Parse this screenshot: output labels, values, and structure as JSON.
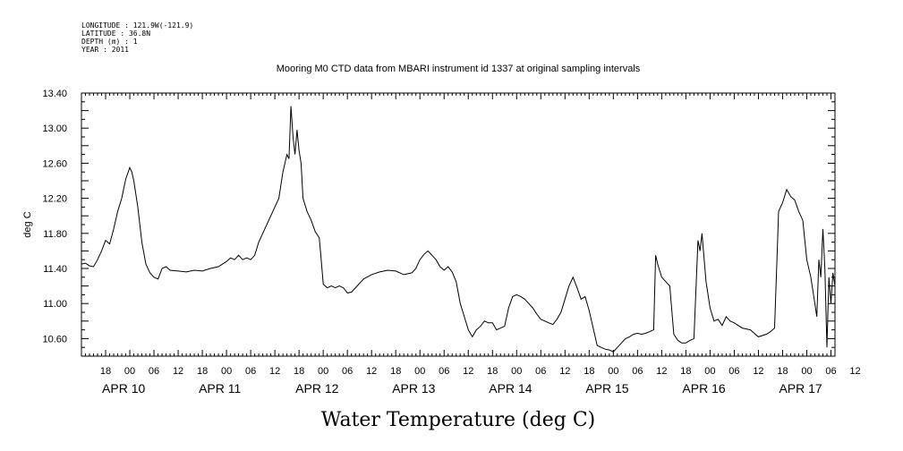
{
  "header": {
    "lines": [
      "LONGITUDE : 121.9W(-121.9)",
      "LATITUDE : 36.8N",
      "DEPTH (m) : 1",
      "YEAR : 2011"
    ]
  },
  "chart_data": {
    "type": "line",
    "title": "Mooring M0 CTD data from MBARI instrument id 1337 at original sampling intervals",
    "xlabel": "Water Temperature (deg C)",
    "ylabel": "deg C",
    "ylim": [
      10.4,
      13.4
    ],
    "yticks": [
      "10.60",
      "11.00",
      "11.40",
      "11.80",
      "12.20",
      "12.60",
      "13.00",
      "13.40"
    ],
    "xlim": [
      "2011-04-09T12:00",
      "2011-04-17T07:00"
    ],
    "x_hour_labels": [
      "18",
      "00",
      "06",
      "12",
      "18",
      "00",
      "06",
      "12",
      "18",
      "00",
      "06",
      "12",
      "18",
      "00",
      "06",
      "12",
      "18",
      "00",
      "06",
      "12",
      "18",
      "00",
      "06",
      "12",
      "18",
      "00",
      "06",
      "12",
      "18",
      "00",
      "06",
      "12"
    ],
    "x_day_labels": [
      "APR 10",
      "APR 11",
      "APR 12",
      "APR 13",
      "APR 14",
      "APR 15",
      "APR 16",
      "APR 17"
    ],
    "grid": false,
    "series": [
      {
        "color": "#000000",
        "points": [
          [
            "2011-04-09T12:00",
            11.45
          ],
          [
            "2011-04-09T13:00",
            11.46
          ],
          [
            "2011-04-09T14:00",
            11.43
          ],
          [
            "2011-04-09T15:00",
            11.42
          ],
          [
            "2011-04-09T16:00",
            11.5
          ],
          [
            "2011-04-09T17:00",
            11.6
          ],
          [
            "2011-04-09T18:00",
            11.72
          ],
          [
            "2011-04-09T19:00",
            11.68
          ],
          [
            "2011-04-09T20:00",
            11.85
          ],
          [
            "2011-04-09T21:00",
            12.05
          ],
          [
            "2011-04-09T22:00",
            12.2
          ],
          [
            "2011-04-09T23:00",
            12.42
          ],
          [
            "2011-04-10T00:00",
            12.55
          ],
          [
            "2011-04-10T00:30",
            12.5
          ],
          [
            "2011-04-10T01:00",
            12.4
          ],
          [
            "2011-04-10T02:00",
            12.1
          ],
          [
            "2011-04-10T03:00",
            11.7
          ],
          [
            "2011-04-10T04:00",
            11.45
          ],
          [
            "2011-04-10T05:00",
            11.35
          ],
          [
            "2011-04-10T06:00",
            11.3
          ],
          [
            "2011-04-10T07:00",
            11.28
          ],
          [
            "2011-04-10T08:00",
            11.4
          ],
          [
            "2011-04-10T09:00",
            11.42
          ],
          [
            "2011-04-10T10:00",
            11.38
          ],
          [
            "2011-04-10T12:00",
            11.37
          ],
          [
            "2011-04-10T14:00",
            11.36
          ],
          [
            "2011-04-10T16:00",
            11.38
          ],
          [
            "2011-04-10T18:00",
            11.37
          ],
          [
            "2011-04-10T20:00",
            11.4
          ],
          [
            "2011-04-10T22:00",
            11.42
          ],
          [
            "2011-04-11T00:00",
            11.48
          ],
          [
            "2011-04-11T01:00",
            11.52
          ],
          [
            "2011-04-11T02:00",
            11.5
          ],
          [
            "2011-04-11T03:00",
            11.55
          ],
          [
            "2011-04-11T04:00",
            11.5
          ],
          [
            "2011-04-11T05:00",
            11.52
          ],
          [
            "2011-04-11T06:00",
            11.5
          ],
          [
            "2011-04-11T07:00",
            11.55
          ],
          [
            "2011-04-11T08:00",
            11.7
          ],
          [
            "2011-04-11T09:00",
            11.8
          ],
          [
            "2011-04-11T10:00",
            11.9
          ],
          [
            "2011-04-11T11:00",
            12.0
          ],
          [
            "2011-04-11T12:00",
            12.1
          ],
          [
            "2011-04-11T13:00",
            12.2
          ],
          [
            "2011-04-11T14:00",
            12.5
          ],
          [
            "2011-04-11T15:00",
            12.7
          ],
          [
            "2011-04-11T15:30",
            12.65
          ],
          [
            "2011-04-11T16:00",
            13.25
          ],
          [
            "2011-04-11T16:30",
            12.9
          ],
          [
            "2011-04-11T17:00",
            12.7
          ],
          [
            "2011-04-11T17:30",
            12.98
          ],
          [
            "2011-04-11T18:00",
            12.75
          ],
          [
            "2011-04-11T18:30",
            12.6
          ],
          [
            "2011-04-11T19:00",
            12.2
          ],
          [
            "2011-04-11T20:00",
            12.05
          ],
          [
            "2011-04-11T21:00",
            11.95
          ],
          [
            "2011-04-11T22:00",
            11.82
          ],
          [
            "2011-04-11T23:00",
            11.75
          ],
          [
            "2011-04-11T23:30",
            11.5
          ],
          [
            "2011-04-12T00:00",
            11.22
          ],
          [
            "2011-04-12T01:00",
            11.18
          ],
          [
            "2011-04-12T02:00",
            11.2
          ],
          [
            "2011-04-12T03:00",
            11.18
          ],
          [
            "2011-04-12T04:00",
            11.2
          ],
          [
            "2011-04-12T05:00",
            11.18
          ],
          [
            "2011-04-12T06:00",
            11.12
          ],
          [
            "2011-04-12T07:00",
            11.13
          ],
          [
            "2011-04-12T08:00",
            11.18
          ],
          [
            "2011-04-12T10:00",
            11.28
          ],
          [
            "2011-04-12T12:00",
            11.33
          ],
          [
            "2011-04-12T14:00",
            11.36
          ],
          [
            "2011-04-12T16:00",
            11.38
          ],
          [
            "2011-04-12T18:00",
            11.37
          ],
          [
            "2011-04-12T20:00",
            11.33
          ],
          [
            "2011-04-12T22:00",
            11.35
          ],
          [
            "2011-04-12T23:00",
            11.4
          ],
          [
            "2011-04-13T00:00",
            11.5
          ],
          [
            "2011-04-13T01:00",
            11.56
          ],
          [
            "2011-04-13T02:00",
            11.6
          ],
          [
            "2011-04-13T03:00",
            11.55
          ],
          [
            "2011-04-13T04:00",
            11.5
          ],
          [
            "2011-04-13T05:00",
            11.42
          ],
          [
            "2011-04-13T06:00",
            11.38
          ],
          [
            "2011-04-13T07:00",
            11.42
          ],
          [
            "2011-04-13T08:00",
            11.36
          ],
          [
            "2011-04-13T09:00",
            11.25
          ],
          [
            "2011-04-13T10:00",
            11.0
          ],
          [
            "2011-04-13T11:00",
            10.85
          ],
          [
            "2011-04-13T12:00",
            10.7
          ],
          [
            "2011-04-13T13:00",
            10.62
          ],
          [
            "2011-04-13T14:00",
            10.7
          ],
          [
            "2011-04-13T15:00",
            10.74
          ],
          [
            "2011-04-13T16:00",
            10.8
          ],
          [
            "2011-04-13T17:00",
            10.78
          ],
          [
            "2011-04-13T18:00",
            10.78
          ],
          [
            "2011-04-13T19:00",
            10.7
          ],
          [
            "2011-04-13T20:00",
            10.72
          ],
          [
            "2011-04-13T21:00",
            10.74
          ],
          [
            "2011-04-13T22:00",
            10.95
          ],
          [
            "2011-04-13T23:00",
            11.08
          ],
          [
            "2011-04-14T00:00",
            11.1
          ],
          [
            "2011-04-14T01:00",
            11.08
          ],
          [
            "2011-04-14T02:00",
            11.05
          ],
          [
            "2011-04-14T03:00",
            11.0
          ],
          [
            "2011-04-14T04:00",
            10.95
          ],
          [
            "2011-04-14T05:00",
            10.88
          ],
          [
            "2011-04-14T06:00",
            10.82
          ],
          [
            "2011-04-14T07:00",
            10.8
          ],
          [
            "2011-04-14T08:00",
            10.78
          ],
          [
            "2011-04-14T09:00",
            10.76
          ],
          [
            "2011-04-14T10:00",
            10.82
          ],
          [
            "2011-04-14T11:00",
            10.9
          ],
          [
            "2011-04-14T12:00",
            11.05
          ],
          [
            "2011-04-14T13:00",
            11.2
          ],
          [
            "2011-04-14T14:00",
            11.3
          ],
          [
            "2011-04-14T15:00",
            11.18
          ],
          [
            "2011-04-14T16:00",
            11.05
          ],
          [
            "2011-04-14T17:00",
            11.08
          ],
          [
            "2011-04-14T18:00",
            10.92
          ],
          [
            "2011-04-14T19:00",
            10.72
          ],
          [
            "2011-04-14T20:00",
            10.52
          ],
          [
            "2011-04-14T21:00",
            10.5
          ],
          [
            "2011-04-14T22:00",
            10.48
          ],
          [
            "2011-04-14T23:00",
            10.47
          ],
          [
            "2011-04-15T00:00",
            10.45
          ],
          [
            "2011-04-15T01:00",
            10.5
          ],
          [
            "2011-04-15T02:00",
            10.55
          ],
          [
            "2011-04-15T03:00",
            10.6
          ],
          [
            "2011-04-15T04:00",
            10.62
          ],
          [
            "2011-04-15T05:00",
            10.65
          ],
          [
            "2011-04-15T06:00",
            10.66
          ],
          [
            "2011-04-15T07:00",
            10.65
          ],
          [
            "2011-04-15T08:00",
            10.66
          ],
          [
            "2011-04-15T09:00",
            10.68
          ],
          [
            "2011-04-15T10:00",
            10.7
          ],
          [
            "2011-04-15T10:30",
            11.55
          ],
          [
            "2011-04-15T11:00",
            11.45
          ],
          [
            "2011-04-15T12:00",
            11.3
          ],
          [
            "2011-04-15T13:00",
            11.25
          ],
          [
            "2011-04-15T14:00",
            11.2
          ],
          [
            "2011-04-15T15:00",
            10.65
          ],
          [
            "2011-04-15T16:00",
            10.58
          ],
          [
            "2011-04-15T17:00",
            10.55
          ],
          [
            "2011-04-15T18:00",
            10.55
          ],
          [
            "2011-04-15T19:00",
            10.58
          ],
          [
            "2011-04-15T20:00",
            10.6
          ],
          [
            "2011-04-15T21:00",
            11.72
          ],
          [
            "2011-04-15T21:30",
            11.6
          ],
          [
            "2011-04-15T22:00",
            11.8
          ],
          [
            "2011-04-15T23:00",
            11.25
          ],
          [
            "2011-04-16T00:00",
            10.95
          ],
          [
            "2011-04-16T01:00",
            10.8
          ],
          [
            "2011-04-16T02:00",
            10.82
          ],
          [
            "2011-04-16T03:00",
            10.75
          ],
          [
            "2011-04-16T04:00",
            10.85
          ],
          [
            "2011-04-16T05:00",
            10.8
          ],
          [
            "2011-04-16T06:00",
            10.78
          ],
          [
            "2011-04-16T08:00",
            10.72
          ],
          [
            "2011-04-16T10:00",
            10.7
          ],
          [
            "2011-04-16T12:00",
            10.62
          ],
          [
            "2011-04-16T14:00",
            10.65
          ],
          [
            "2011-04-16T15:00",
            10.68
          ],
          [
            "2011-04-16T16:00",
            10.72
          ],
          [
            "2011-04-16T17:00",
            12.05
          ],
          [
            "2011-04-16T18:00",
            12.15
          ],
          [
            "2011-04-16T19:00",
            12.3
          ],
          [
            "2011-04-16T20:00",
            12.22
          ],
          [
            "2011-04-16T21:00",
            12.18
          ],
          [
            "2011-04-16T22:00",
            12.05
          ],
          [
            "2011-04-16T23:00",
            11.95
          ],
          [
            "2011-04-17T00:00",
            11.5
          ],
          [
            "2011-04-17T01:00",
            11.3
          ],
          [
            "2011-04-17T02:00",
            11.0
          ],
          [
            "2011-04-17T02:30",
            10.85
          ],
          [
            "2011-04-17T03:00",
            11.5
          ],
          [
            "2011-04-17T03:30",
            11.3
          ],
          [
            "2011-04-17T04:00",
            11.85
          ],
          [
            "2011-04-17T04:30",
            11.4
          ],
          [
            "2011-04-17T05:00",
            10.5
          ],
          [
            "2011-04-17T05:30",
            11.3
          ],
          [
            "2011-04-17T06:00",
            11.0
          ],
          [
            "2011-04-17T06:30",
            11.35
          ],
          [
            "2011-04-17T07:00",
            11.2
          ]
        ]
      }
    ]
  }
}
